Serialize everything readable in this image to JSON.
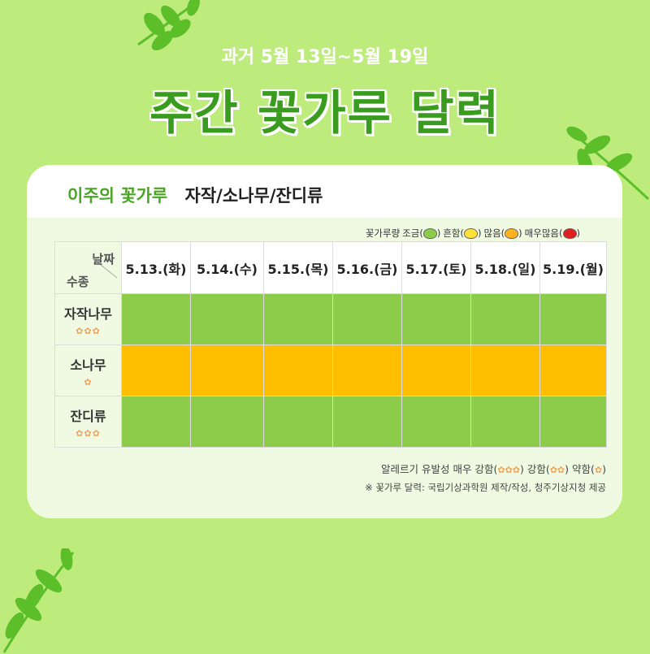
{
  "header": {
    "subtitle": "과거 5월 13일~5월 19일",
    "title": "주간 꽃가루 달력"
  },
  "card": {
    "heading_label": "이주의 꽃가루",
    "heading_species": "자작/소나무/잔디류",
    "legend": {
      "prefix": "꽃가루량",
      "items": [
        {
          "label": "조금",
          "color": "#8ccc4a"
        },
        {
          "label": "흔함",
          "color": "#ffe13a"
        },
        {
          "label": "많음",
          "color": "#ffb21f"
        },
        {
          "label": "매우많음",
          "color": "#e02020"
        }
      ]
    },
    "table": {
      "corner_date": "날짜",
      "corner_kind": "수종",
      "dates": [
        "5.13.(화)",
        "5.14.(수)",
        "5.15.(목)",
        "5.16.(금)",
        "5.17.(토)",
        "5.18.(일)",
        "5.19.(월)"
      ],
      "rows": [
        {
          "name": "자작나무",
          "allergy": "✿✿✿",
          "levels": [
            "조금",
            "조금",
            "조금",
            "조금",
            "조금",
            "조금",
            "조금"
          ]
        },
        {
          "name": "소나무",
          "allergy": "✿",
          "levels": [
            "많음",
            "많음",
            "많음",
            "많음",
            "많음",
            "많음",
            "많음"
          ]
        },
        {
          "name": "잔디류",
          "allergy": "✿✿✿",
          "levels": [
            "조금",
            "조금",
            "조금",
            "조금",
            "조금",
            "조금",
            "조금"
          ]
        }
      ]
    },
    "footer": {
      "allergy_prefix": "알레르기 유발성",
      "very_strong": "매우 강함(",
      "very_strong_icons": "✿✿✿",
      "strong": ") 강함(",
      "strong_icons": "✿✿",
      "weak": ") 약함(",
      "weak_icons": "✿",
      "end": ")",
      "source": "※ 꽃가루 달력: 국립기상과학원 제작/작성, 청주기상지청 제공"
    }
  },
  "colors": {
    "background": "#bdec7d",
    "title_green": "#3a9c1e",
    "level_low": "#8ccc4a",
    "level_high": "#ffbf00"
  }
}
